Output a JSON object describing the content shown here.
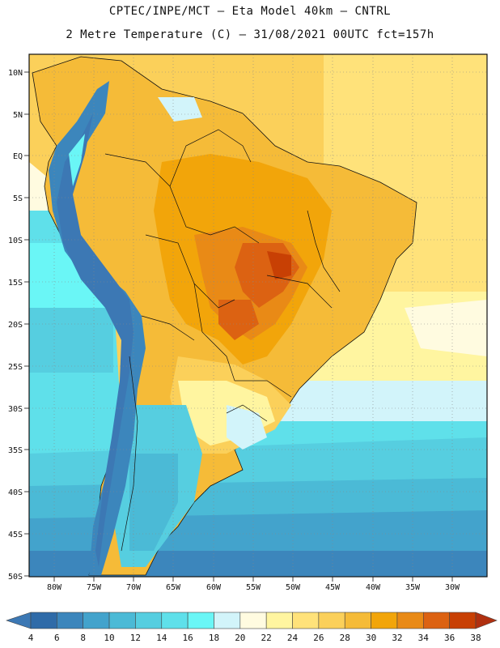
{
  "header": {
    "line1": "CPTEC/INPE/MCT –  Eta Model 40km – CNTRL",
    "line2": "2 Metre Temperature (C) – 31/08/2021 00UTC fct=157h"
  },
  "axes": {
    "lat_ticks": [
      "10N",
      "5N",
      "EQ",
      "5S",
      "10S",
      "15S",
      "20S",
      "25S",
      "30S",
      "35S",
      "40S",
      "45S",
      "50S"
    ],
    "lon_ticks": [
      "80W",
      "75W",
      "70W",
      "65W",
      "60W",
      "55W",
      "50W",
      "45W",
      "40W",
      "35W",
      "30W"
    ]
  },
  "colorbar": {
    "labels": [
      "4",
      "6",
      "8",
      "10",
      "12",
      "14",
      "16",
      "18",
      "20",
      "22",
      "24",
      "26",
      "28",
      "30",
      "32",
      "34",
      "36",
      "38"
    ],
    "colors": [
      "#3c78b4",
      "#2f6ba8",
      "#3c86bc",
      "#43a3cc",
      "#4bbad6",
      "#56cee0",
      "#5fe0ea",
      "#6af6f6",
      "#d2f4fa",
      "#fffbe0",
      "#fff5a0",
      "#ffe27a",
      "#fbd05a",
      "#f5bb38",
      "#f2a50a",
      "#e98a16",
      "#dc6212",
      "#c84004",
      "#b03010"
    ]
  },
  "map_colors": {
    "ocean_warm": "#ffd865",
    "ocean_south": "#5fe0ea",
    "ocean_deep": "#3c86bc",
    "land_hot": "#dc6212",
    "land_warm": "#f5bb38",
    "andes": "#3c78b4"
  }
}
